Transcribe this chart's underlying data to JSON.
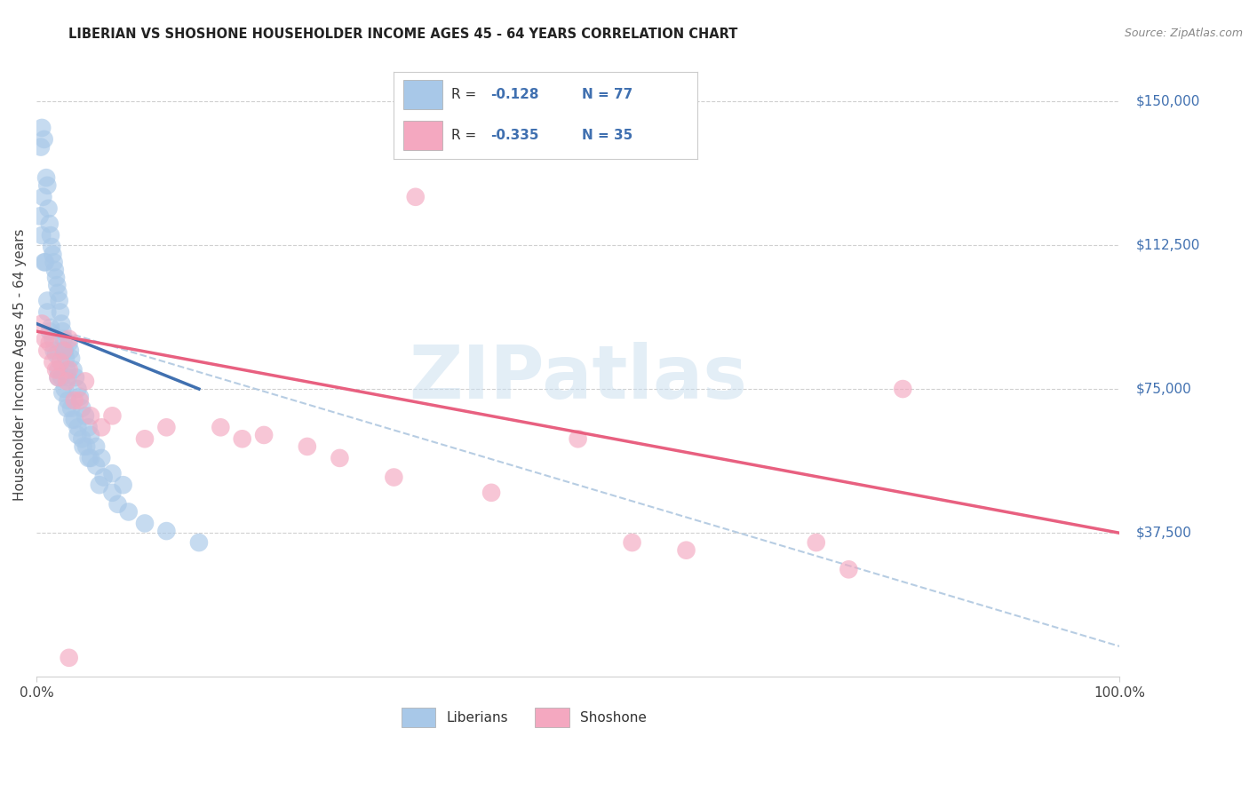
{
  "title": "LIBERIAN VS SHOSHONE HOUSEHOLDER INCOME AGES 45 - 64 YEARS CORRELATION CHART",
  "source": "Source: ZipAtlas.com",
  "ylabel": "Householder Income Ages 45 - 64 years",
  "xlim": [
    0,
    100
  ],
  "ylim": [
    0,
    162500
  ],
  "watermark": "ZIPatlas",
  "liberian_color": "#a8c8e8",
  "shoshone_color": "#f4a8c0",
  "liberian_line_color": "#4070b0",
  "shoshone_line_color": "#e86080",
  "dashed_line_color": "#b0c8e0",
  "background_color": "#ffffff",
  "grid_color": "#d0d0d0",
  "ytick_vals": [
    37500,
    75000,
    112500,
    150000
  ],
  "ytick_labels": [
    "$37,500",
    "$75,000",
    "$112,500",
    "$150,000"
  ],
  "lib_r": "-0.128",
  "lib_n": "77",
  "sho_r": "-0.335",
  "sho_n": "35",
  "liberian_x": [
    0.5,
    0.7,
    0.9,
    1.0,
    1.1,
    1.2,
    1.3,
    1.4,
    1.5,
    1.6,
    1.7,
    1.8,
    1.9,
    2.0,
    2.1,
    2.2,
    2.3,
    2.4,
    2.5,
    2.6,
    2.7,
    2.8,
    2.9,
    3.0,
    3.1,
    3.2,
    3.4,
    3.6,
    3.8,
    4.0,
    4.2,
    4.5,
    4.8,
    5.0,
    5.5,
    6.0,
    7.0,
    8.0,
    0.4,
    0.6,
    0.8,
    1.0,
    1.2,
    1.5,
    1.8,
    2.0,
    2.3,
    2.6,
    2.9,
    3.2,
    3.5,
    3.8,
    4.2,
    4.6,
    5.0,
    5.5,
    6.2,
    7.0,
    8.5,
    0.3,
    0.5,
    0.7,
    1.0,
    1.3,
    1.6,
    2.0,
    2.4,
    2.8,
    3.3,
    3.8,
    4.3,
    4.8,
    5.8,
    7.5,
    10.0,
    12.0,
    15.0
  ],
  "liberian_y": [
    143000,
    140000,
    130000,
    128000,
    122000,
    118000,
    115000,
    112000,
    110000,
    108000,
    106000,
    104000,
    102000,
    100000,
    98000,
    95000,
    92000,
    90000,
    88000,
    85000,
    83000,
    80000,
    78000,
    87000,
    85000,
    83000,
    80000,
    78000,
    75000,
    73000,
    70000,
    68000,
    65000,
    63000,
    60000,
    57000,
    53000,
    50000,
    138000,
    125000,
    108000,
    95000,
    90000,
    88000,
    84000,
    80000,
    78000,
    75000,
    72000,
    70000,
    67000,
    65000,
    62000,
    60000,
    57000,
    55000,
    52000,
    48000,
    43000,
    120000,
    115000,
    108000,
    98000,
    91000,
    85000,
    78000,
    74000,
    70000,
    67000,
    63000,
    60000,
    57000,
    50000,
    45000,
    40000,
    38000,
    35000
  ],
  "shoshone_x": [
    0.5,
    0.8,
    1.0,
    1.5,
    2.0,
    2.5,
    3.0,
    4.0,
    5.0,
    6.0,
    3.0,
    4.5,
    7.0,
    10.0,
    12.0,
    35.0,
    17.0,
    19.0,
    21.0,
    25.0,
    28.0,
    33.0,
    42.0,
    50.0,
    55.0,
    60.0,
    72.0,
    75.0,
    80.0,
    2.2,
    2.8,
    3.5,
    1.2,
    1.8,
    3.0
  ],
  "shoshone_y": [
    92000,
    88000,
    85000,
    82000,
    78000,
    85000,
    80000,
    72000,
    68000,
    65000,
    88000,
    77000,
    68000,
    62000,
    65000,
    125000,
    65000,
    62000,
    63000,
    60000,
    57000,
    52000,
    48000,
    62000,
    35000,
    33000,
    35000,
    28000,
    75000,
    82000,
    77000,
    72000,
    87000,
    80000,
    5000
  ],
  "lib_line_x": [
    0,
    15
  ],
  "lib_line_y": [
    92000,
    75000
  ],
  "sho_line_x": [
    0,
    100
  ],
  "sho_line_y": [
    90000,
    37500
  ],
  "dash_line_x": [
    0,
    100
  ],
  "dash_line_y": [
    92000,
    8000
  ]
}
